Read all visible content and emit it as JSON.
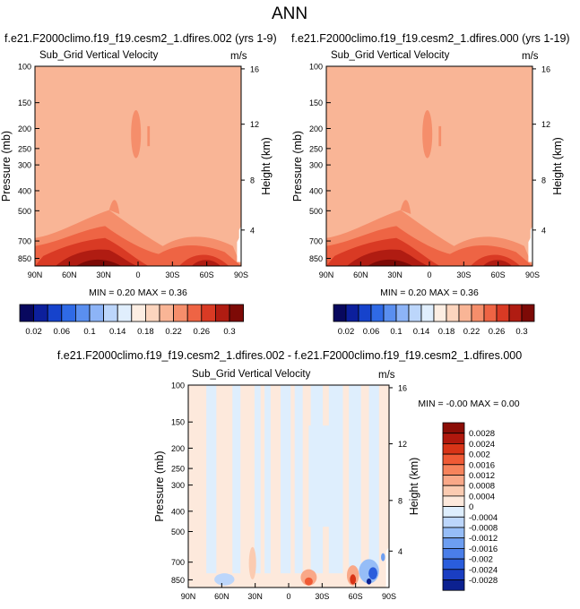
{
  "page_title": "ANN",
  "chart_data": [
    {
      "type": "heatmap",
      "title": "f.e21.F2000climo.f19_f19.cesm2_1.dfires.002 (yrs 1-9)",
      "subtitle": "Sub_Grid Vertical Velocity",
      "units": "m/s",
      "ylabel": "Pressure (mb)",
      "y2label": "Height (km)",
      "xticks": [
        "90N",
        "60N",
        "30N",
        "0",
        "30S",
        "60S",
        "90S"
      ],
      "yticks": [
        "100",
        "150",
        "200",
        "250",
        "300",
        "400",
        "500",
        "700",
        "850"
      ],
      "y2ticks": [
        "16",
        "12",
        "8",
        "4"
      ],
      "stats": "MIN =  0.20  MAX =  0.36",
      "min": 0.2,
      "max": 0.36
    },
    {
      "type": "heatmap",
      "title": "f.e21.F2000climo.f19_f19.cesm2_1.dfires.000 (yrs 1-19)",
      "subtitle": "Sub_Grid Vertical Velocity",
      "units": "m/s",
      "ylabel": "Pressure (mb)",
      "y2label": "Height (km)",
      "xticks": [
        "90N",
        "60N",
        "30N",
        "0",
        "30S",
        "60S",
        "90S"
      ],
      "yticks": [
        "100",
        "150",
        "200",
        "250",
        "300",
        "400",
        "500",
        "700",
        "850"
      ],
      "y2ticks": [
        "16",
        "12",
        "8",
        "4"
      ],
      "stats": "MIN =  0.20  MAX =  0.36",
      "min": 0.2,
      "max": 0.36
    },
    {
      "type": "heatmap",
      "title": "f.e21.F2000climo.f19_f19.cesm2_1.dfires.002 - f.e21.F2000climo.f19_f19.cesm2_1.dfires.000",
      "subtitle": "Sub_Grid Vertical Velocity",
      "units": "m/s",
      "ylabel": "Pressure (mb)",
      "y2label": "Height (km)",
      "xticks": [
        "90N",
        "60N",
        "30N",
        "0",
        "30S",
        "60S",
        "90S"
      ],
      "yticks": [
        "100",
        "150",
        "200",
        "250",
        "300",
        "400",
        "500",
        "700",
        "850"
      ],
      "y2ticks": [
        "16",
        "12",
        "8",
        "4"
      ],
      "stats": "MIN = -0.00  MAX =  0.00",
      "min": -0.0,
      "max": 0.0
    }
  ],
  "colorbar_top": {
    "labels": [
      "0.02",
      "0.06",
      "0.1",
      "0.14",
      "0.18",
      "0.22",
      "0.26",
      "0.3"
    ],
    "colors": [
      "#08085e",
      "#0c1f9c",
      "#1643cc",
      "#2f6ae6",
      "#5a8ff0",
      "#8db4f7",
      "#bcd6fb",
      "#e0eefd",
      "#fdeee3",
      "#fcd5be",
      "#f9b596",
      "#f58e6b",
      "#ee6444",
      "#d93a24",
      "#b01c12",
      "#7d0a06"
    ]
  },
  "colorbar_diff": {
    "labels": [
      "0.0028",
      "0.0024",
      "0.002",
      "0.0016",
      "0.0012",
      "0.0008",
      "0.0004",
      "0",
      "-0.0004",
      "-0.0008",
      "-0.0012",
      "-0.0016",
      "-0.002",
      "-0.0024",
      "-0.0028"
    ],
    "colors": [
      "#8b0d06",
      "#b0180d",
      "#d83417",
      "#ef5a35",
      "#f6835c",
      "#f9a888",
      "#fbcbb1",
      "#fde9dc",
      "#deeefd",
      "#bcd6fb",
      "#96bdf7",
      "#6d9ef1",
      "#4a7ee9",
      "#2a5ddc",
      "#1a3ec2",
      "#0c2190"
    ]
  }
}
